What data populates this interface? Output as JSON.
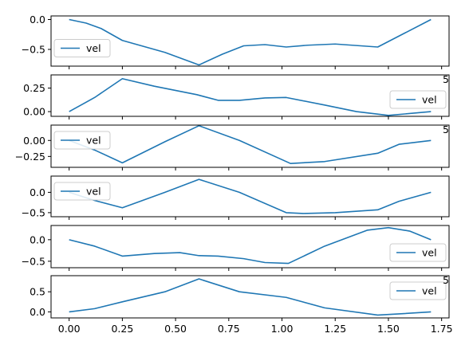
{
  "chart_data": [
    {
      "type": "line",
      "ylim": [
        -0.78,
        0.06
      ],
      "yticks": [
        0.0,
        -0.5
      ],
      "ytick_labels": [
        "0.0",
        "−0.5"
      ],
      "xlim": [
        -0.085,
        1.785
      ],
      "legend_loc": "center-left",
      "series": [
        {
          "name": "vel",
          "color": "#1f77b4",
          "x": [
            0.0,
            0.08,
            0.15,
            0.25,
            0.45,
            0.61,
            0.72,
            0.82,
            0.92,
            1.02,
            1.12,
            1.25,
            1.45,
            1.7
          ],
          "y": [
            0.0,
            -0.06,
            -0.15,
            -0.35,
            -0.55,
            -0.76,
            -0.58,
            -0.44,
            -0.42,
            -0.46,
            -0.43,
            -0.41,
            -0.46,
            0.0
          ]
        }
      ]
    },
    {
      "type": "line",
      "ylim": [
        -0.05,
        0.39
      ],
      "yticks": [
        0.25,
        0.0
      ],
      "ytick_labels": [
        "0.25",
        "0.00"
      ],
      "xlim": [
        -0.085,
        1.785
      ],
      "legend_loc": "center-right",
      "series": [
        {
          "name": "vel",
          "color": "#1f77b4",
          "x": [
            0.0,
            0.12,
            0.25,
            0.4,
            0.6,
            0.7,
            0.8,
            0.92,
            1.02,
            1.2,
            1.35,
            1.5,
            1.7
          ],
          "y": [
            0.0,
            0.15,
            0.35,
            0.27,
            0.18,
            0.12,
            0.12,
            0.145,
            0.15,
            0.07,
            0.0,
            -0.04,
            0.0
          ]
        }
      ]
    },
    {
      "type": "line",
      "ylim": [
        -0.42,
        0.24
      ],
      "yticks": [
        0.0,
        -0.25
      ],
      "ytick_labels": [
        "0.00",
        "−0.25"
      ],
      "xlim": [
        -0.085,
        1.785
      ],
      "legend_loc": "top-left",
      "series": [
        {
          "name": "vel",
          "color": "#1f77b4",
          "x": [
            0.0,
            0.12,
            0.25,
            0.45,
            0.61,
            0.8,
            1.04,
            1.2,
            1.45,
            1.55,
            1.7
          ],
          "y": [
            0.0,
            -0.15,
            -0.35,
            -0.02,
            0.23,
            0.0,
            -0.36,
            -0.33,
            -0.2,
            -0.06,
            0.0
          ]
        }
      ]
    },
    {
      "type": "line",
      "ylim": [
        -0.6,
        0.4
      ],
      "yticks": [
        0.0,
        -0.5
      ],
      "ytick_labels": [
        "0.0",
        "−0.5"
      ],
      "xlim": [
        -0.085,
        1.785
      ],
      "legend_loc": "top-left",
      "series": [
        {
          "name": "vel",
          "color": "#1f77b4",
          "x": [
            0.0,
            0.12,
            0.25,
            0.45,
            0.61,
            0.8,
            1.02,
            1.1,
            1.25,
            1.45,
            1.55,
            1.7
          ],
          "y": [
            0.0,
            -0.2,
            -0.38,
            0.0,
            0.32,
            0.0,
            -0.5,
            -0.52,
            -0.5,
            -0.43,
            -0.22,
            0.0
          ]
        }
      ]
    },
    {
      "type": "line",
      "ylim": [
        -0.65,
        0.33
      ],
      "yticks": [
        0.0,
        -0.5
      ],
      "ytick_labels": [
        "0.0",
        "−0.5"
      ],
      "xlim": [
        -0.085,
        1.785
      ],
      "legend_loc": "bottom-right",
      "series": [
        {
          "name": "vel",
          "color": "#1f77b4",
          "x": [
            0.0,
            0.12,
            0.25,
            0.4,
            0.52,
            0.61,
            0.7,
            0.82,
            0.92,
            1.03,
            1.2,
            1.4,
            1.5,
            1.6,
            1.7
          ],
          "y": [
            0.0,
            -0.15,
            -0.38,
            -0.32,
            -0.3,
            -0.37,
            -0.38,
            -0.44,
            -0.53,
            -0.55,
            -0.15,
            0.22,
            0.28,
            0.2,
            0.0
          ]
        }
      ]
    },
    {
      "type": "line",
      "ylim": [
        -0.15,
        0.9
      ],
      "yticks": [
        0.5,
        0.0
      ],
      "ytick_labels": [
        "0.5",
        "0.0"
      ],
      "xlim": [
        -0.085,
        1.785
      ],
      "xticks": [
        0.0,
        0.25,
        0.5,
        0.75,
        1.0,
        1.25,
        1.5,
        1.75
      ],
      "xtick_labels": [
        "0.00",
        "0.25",
        "0.50",
        "0.75",
        "1.00",
        "1.25",
        "1.50",
        "1.75"
      ],
      "legend_loc": "top-right",
      "series": [
        {
          "name": "vel",
          "color": "#1f77b4",
          "x": [
            0.0,
            0.12,
            0.25,
            0.45,
            0.61,
            0.8,
            1.02,
            1.2,
            1.45,
            1.55,
            1.7
          ],
          "y": [
            0.0,
            0.08,
            0.25,
            0.5,
            0.82,
            0.5,
            0.36,
            0.1,
            -0.08,
            -0.05,
            0.0
          ]
        }
      ]
    }
  ],
  "clipped_tick_fragment": "5"
}
